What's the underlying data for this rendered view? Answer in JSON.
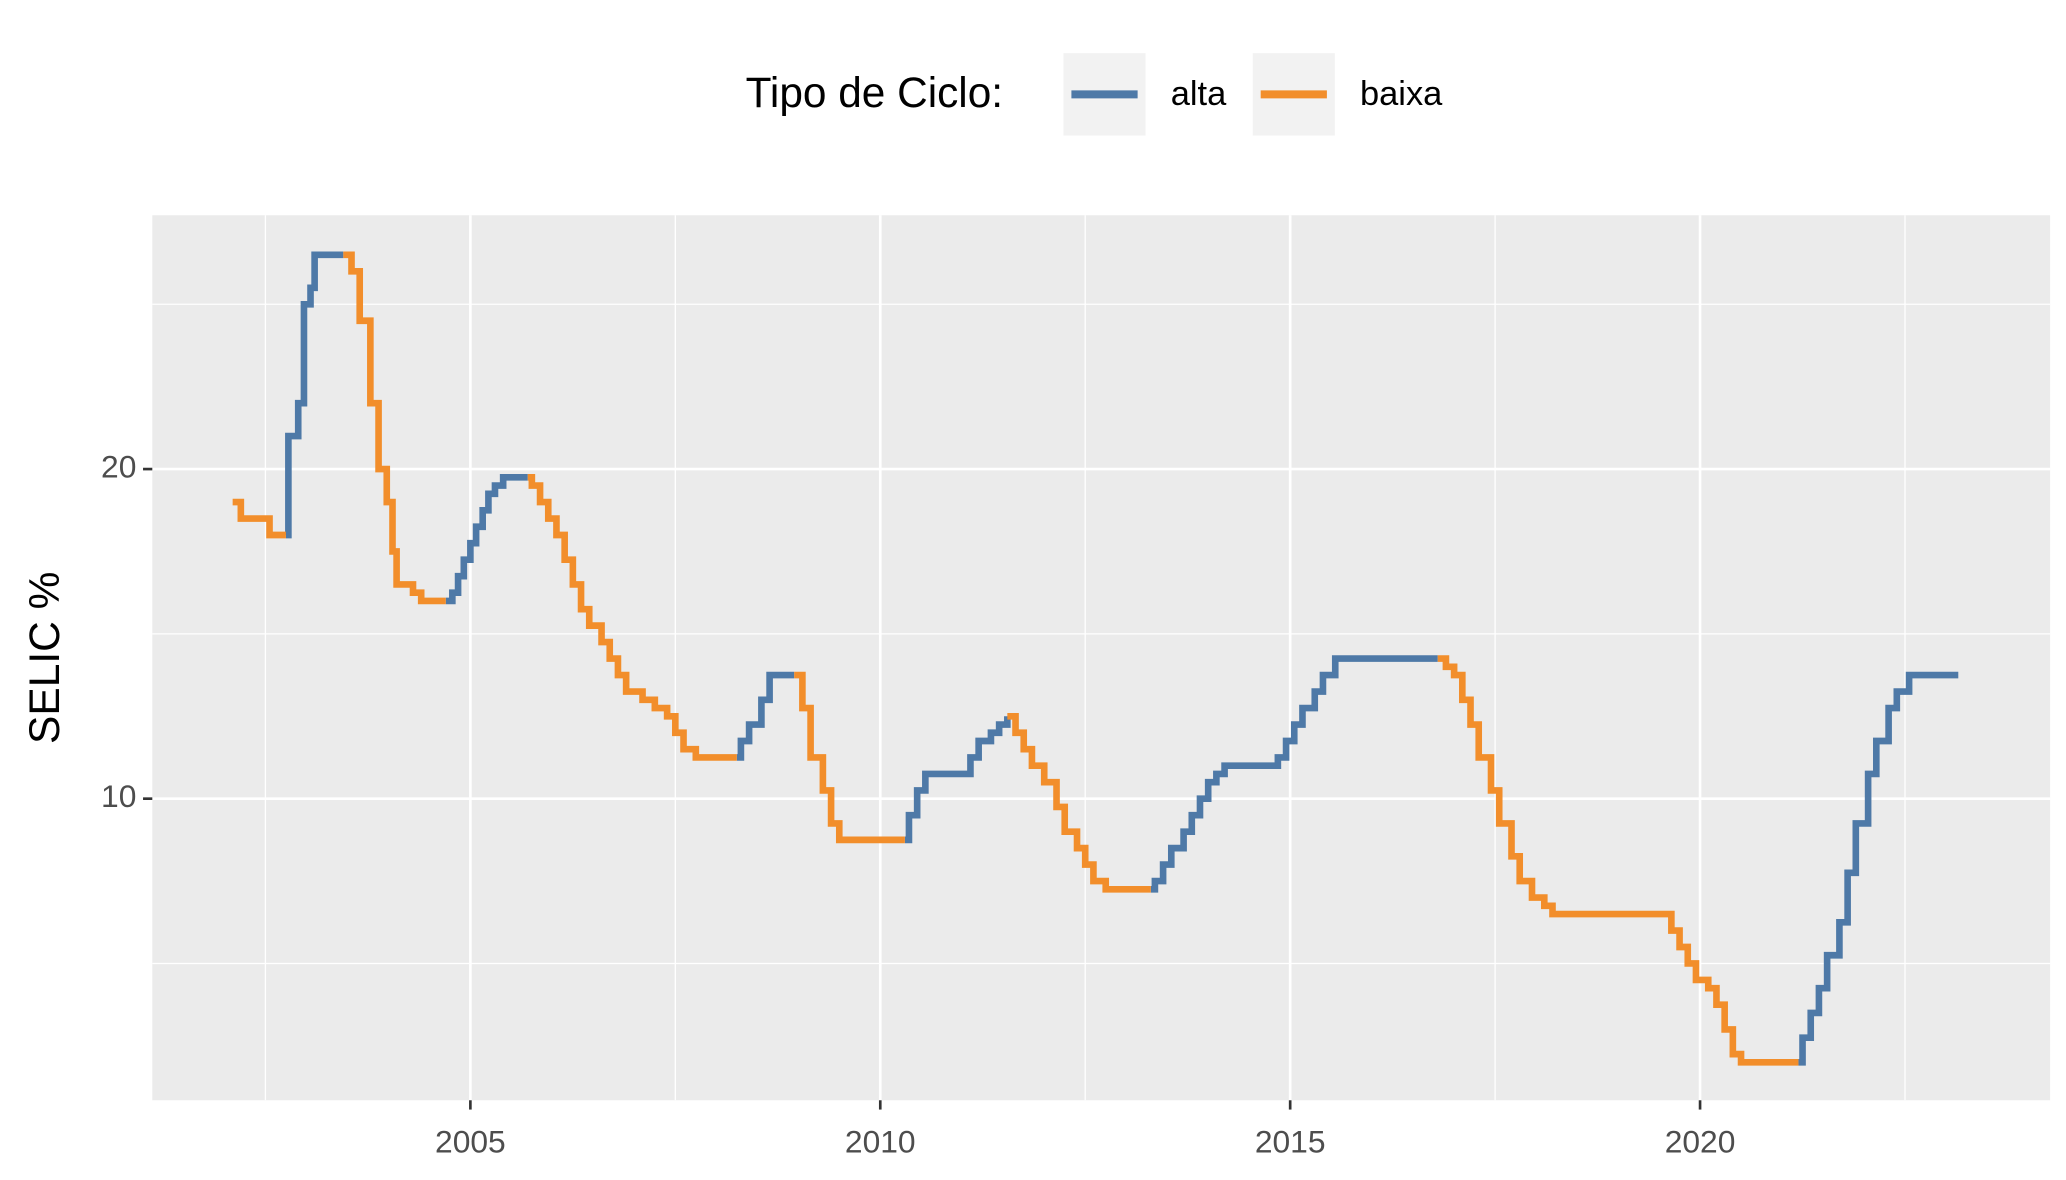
{
  "chart_data": {
    "type": "line",
    "step": true,
    "y_label": "SELIC %",
    "legend_title": "Tipo de Ciclo:",
    "legend": "top",
    "grid": true,
    "minor_grid": true,
    "xlim": [
      2001.12,
      2024.27
    ],
    "xticks": [
      2005,
      2010,
      2015,
      2020
    ],
    "ylim": [
      0.85,
      27.7
    ],
    "yticks": [
      10,
      20
    ],
    "x": [
      2002.1,
      2002.2,
      2002.55,
      2002.75,
      2002.78,
      2002.9,
      2002.97,
      2003.05,
      2003.1,
      2003.45,
      2003.55,
      2003.65,
      2003.78,
      2003.88,
      2003.98,
      2004.05,
      2004.1,
      2004.3,
      2004.4,
      2004.7,
      2004.78,
      2004.85,
      2004.92,
      2005.0,
      2005.07,
      2005.15,
      2005.22,
      2005.3,
      2005.4,
      2005.7,
      2005.75,
      2005.85,
      2005.95,
      2006.05,
      2006.15,
      2006.25,
      2006.35,
      2006.45,
      2006.6,
      2006.7,
      2006.8,
      2006.9,
      2007.1,
      2007.25,
      2007.4,
      2007.5,
      2007.6,
      2007.75,
      2008.25,
      2008.3,
      2008.4,
      2008.55,
      2008.65,
      2008.95,
      2009.05,
      2009.15,
      2009.3,
      2009.4,
      2009.5,
      2010.3,
      2010.35,
      2010.45,
      2010.55,
      2011.0,
      2011.1,
      2011.2,
      2011.35,
      2011.45,
      2011.55,
      2011.65,
      2011.75,
      2011.85,
      2012.0,
      2012.15,
      2012.25,
      2012.4,
      2012.5,
      2012.6,
      2012.75,
      2013.3,
      2013.35,
      2013.45,
      2013.55,
      2013.7,
      2013.8,
      2013.9,
      2014.0,
      2014.1,
      2014.2,
      2014.8,
      2014.85,
      2014.95,
      2015.05,
      2015.15,
      2015.3,
      2015.4,
      2015.55,
      2016.8,
      2016.9,
      2017.0,
      2017.1,
      2017.2,
      2017.3,
      2017.45,
      2017.55,
      2017.7,
      2017.8,
      2017.95,
      2018.1,
      2018.2,
      2019.55,
      2019.65,
      2019.75,
      2019.85,
      2019.95,
      2020.1,
      2020.2,
      2020.3,
      2020.4,
      2020.5,
      2021.2,
      2021.25,
      2021.35,
      2021.45,
      2021.55,
      2021.7,
      2021.8,
      2021.9,
      2022.05,
      2022.15,
      2022.3,
      2022.4,
      2022.55,
      2023.15
    ],
    "series": [
      {
        "name": "alta",
        "color": "#4E79A7",
        "values": [
          null,
          null,
          null,
          18,
          21,
          22,
          25,
          25.5,
          26.5,
          26.5,
          null,
          null,
          null,
          null,
          null,
          null,
          null,
          null,
          null,
          16,
          16.25,
          16.75,
          17.25,
          17.75,
          18.25,
          18.75,
          19.25,
          19.5,
          19.75,
          19.75,
          null,
          null,
          null,
          null,
          null,
          null,
          null,
          null,
          null,
          null,
          null,
          null,
          null,
          null,
          null,
          null,
          null,
          null,
          11.25,
          11.75,
          12.25,
          13,
          13.75,
          13.75,
          null,
          null,
          null,
          null,
          null,
          8.75,
          9.5,
          10.25,
          10.75,
          10.75,
          11.25,
          11.75,
          12,
          12.25,
          12.5,
          null,
          null,
          null,
          null,
          null,
          null,
          null,
          null,
          null,
          null,
          7.25,
          7.5,
          8,
          8.5,
          9,
          9.5,
          10,
          10.5,
          10.75,
          11,
          11,
          11.25,
          11.75,
          12.25,
          12.75,
          13.25,
          13.75,
          14.25,
          14.25,
          null,
          null,
          null,
          null,
          null,
          null,
          null,
          null,
          null,
          null,
          null,
          null,
          null,
          null,
          null,
          null,
          null,
          null,
          null,
          null,
          null,
          null,
          2,
          2.75,
          3.5,
          4.25,
          5.25,
          6.25,
          7.75,
          9.25,
          10.75,
          11.75,
          12.75,
          13.25,
          13.75,
          13.75
        ]
      },
      {
        "name": "baixa",
        "color": "#F28E2B",
        "values": [
          19,
          18.5,
          18,
          18,
          null,
          null,
          null,
          null,
          null,
          26.5,
          26,
          24.5,
          22,
          20,
          19,
          17.5,
          16.5,
          16.25,
          16,
          16,
          null,
          null,
          null,
          null,
          null,
          null,
          null,
          null,
          null,
          19.75,
          19.5,
          19,
          18.5,
          18,
          17.25,
          16.5,
          15.75,
          15.25,
          14.75,
          14.25,
          13.75,
          13.25,
          13,
          12.75,
          12.5,
          12,
          11.5,
          11.25,
          11.25,
          null,
          null,
          null,
          null,
          13.75,
          12.75,
          11.25,
          10.25,
          9.25,
          8.75,
          8.75,
          null,
          null,
          null,
          null,
          null,
          null,
          null,
          null,
          12.5,
          12,
          11.5,
          11,
          10.5,
          9.75,
          9,
          8.5,
          8,
          7.5,
          7.25,
          7.25,
          null,
          null,
          null,
          null,
          null,
          null,
          null,
          null,
          null,
          null,
          null,
          null,
          null,
          null,
          null,
          null,
          null,
          14.25,
          14,
          13.75,
          13,
          12.25,
          11.25,
          10.25,
          9.25,
          8.25,
          7.5,
          7,
          6.75,
          6.5,
          6.5,
          6,
          5.5,
          5,
          4.5,
          4.25,
          3.75,
          3,
          2.25,
          2,
          2,
          null,
          null,
          null,
          null,
          null,
          null,
          null,
          null,
          null,
          null,
          null,
          null,
          null
        ]
      }
    ]
  }
}
